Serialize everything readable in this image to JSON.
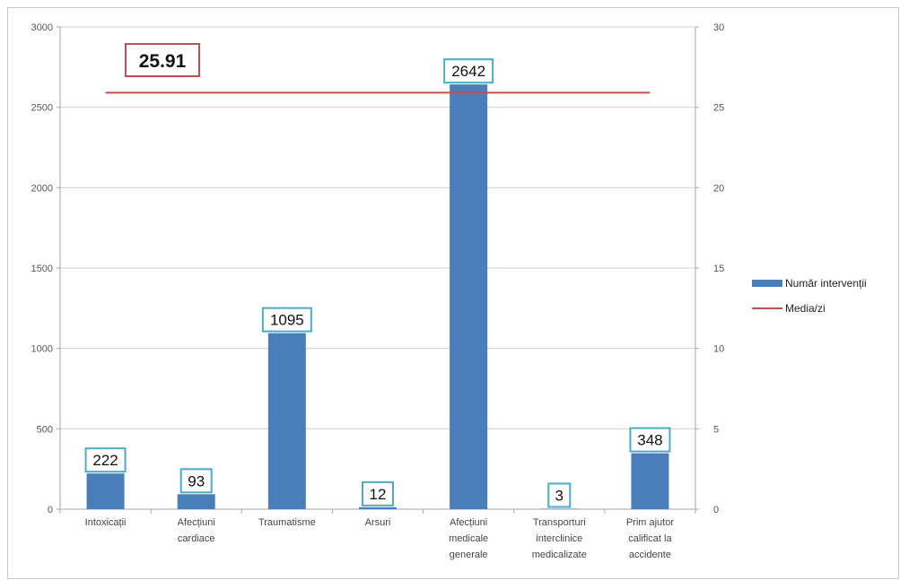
{
  "chart_data": {
    "type": "bar",
    "categories": [
      [
        "Intoxicații"
      ],
      [
        "Afecțiuni",
        "cardiace"
      ],
      [
        "Traumatisme"
      ],
      [
        "Arsuri"
      ],
      [
        "Afecțiuni",
        "medicale",
        "generale"
      ],
      [
        "Transporturi",
        "interclinice",
        "medicalizate"
      ],
      [
        "Prim ajutor",
        "calificat la",
        "accidente"
      ]
    ],
    "series": [
      {
        "name": "Număr intervenții",
        "type": "bar",
        "axis": "left",
        "color": "#4a7ebb",
        "values": [
          222,
          93,
          1095,
          12,
          2642,
          3,
          348
        ]
      },
      {
        "name": "Media/zi",
        "type": "line",
        "axis": "right",
        "color": "#c0504d",
        "value": 25.91
      }
    ],
    "y_left": {
      "lim": [
        0,
        3000
      ],
      "ticks": [
        "0",
        "500",
        "1000",
        "1500",
        "2000",
        "2500",
        "3000"
      ]
    },
    "y_right": {
      "lim": [
        0,
        30
      ],
      "ticks": [
        "0",
        "5",
        "10",
        "15",
        "20",
        "25",
        "30"
      ]
    },
    "average_label": "25.91",
    "data_label_border": "#4bacc6",
    "average_label_border": "#c0504d",
    "grid": "horizontal",
    "legend_position": "right",
    "title": "",
    "xlabel": "",
    "ylabel": ""
  }
}
